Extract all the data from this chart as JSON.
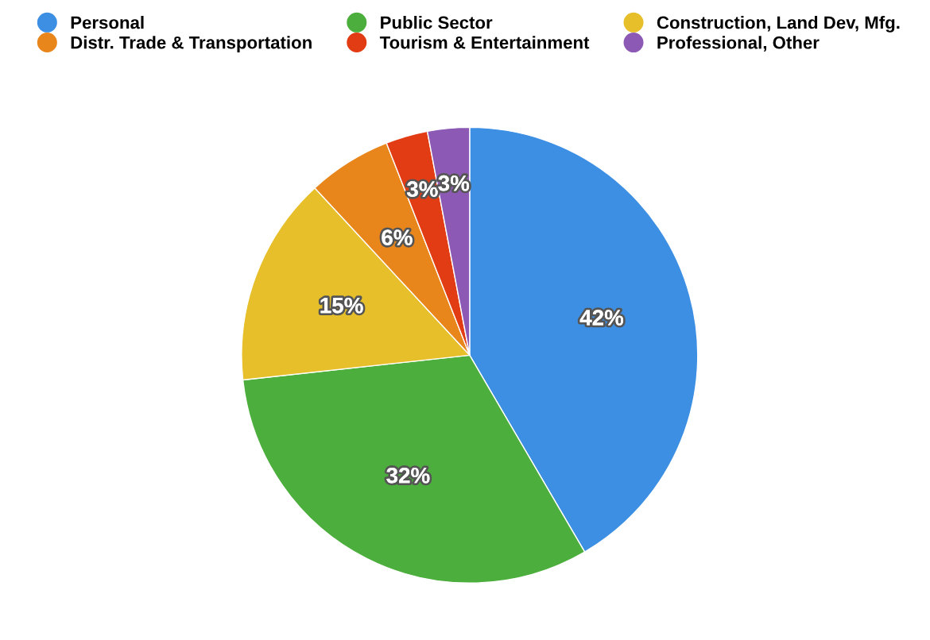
{
  "chart_data": {
    "type": "pie",
    "categories": [
      "Personal",
      "Public Sector",
      "Construction, Land Dev, Mfg.",
      "Distr. Trade & Transportation",
      "Tourism & Entertainment",
      "Professional, Other"
    ],
    "values": [
      42,
      32,
      15,
      6,
      3,
      3
    ],
    "colors": [
      "#3d8fe3",
      "#4cae3c",
      "#e6bf2a",
      "#e8861c",
      "#e23c14",
      "#8c5ab4"
    ],
    "value_labels": [
      "42%",
      "32%",
      "15%",
      "6%",
      "3%",
      "3%"
    ],
    "legend": "top"
  }
}
